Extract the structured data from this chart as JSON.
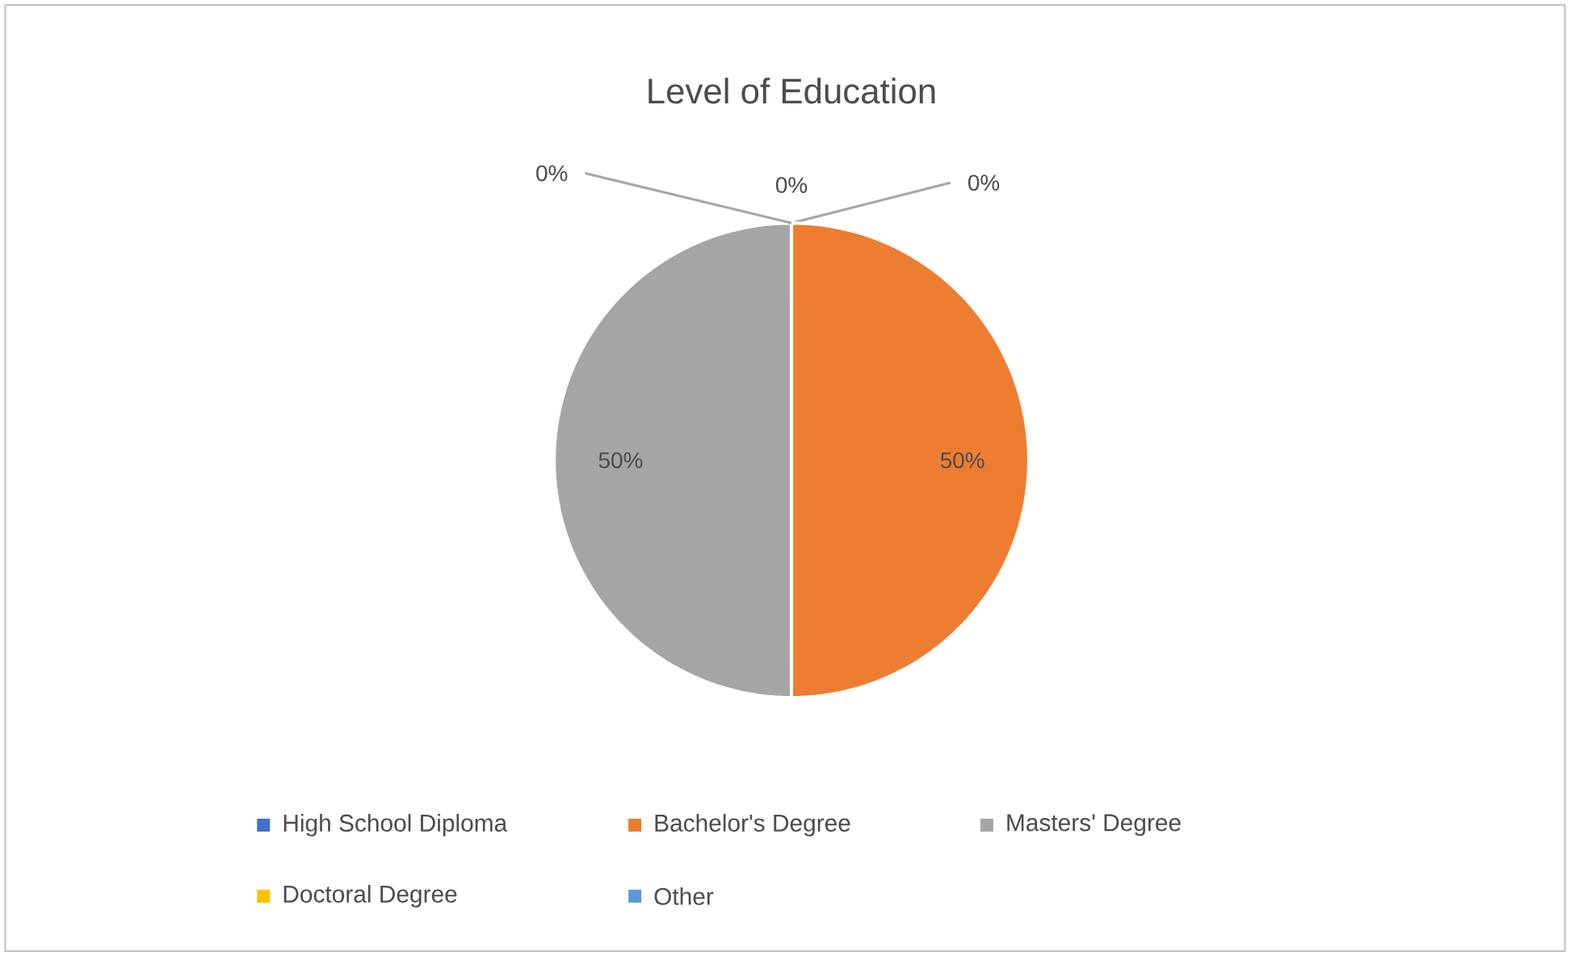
{
  "chart_data": {
    "type": "pie",
    "title": "Level of Education",
    "categories": [
      "High School Diploma",
      "Bachelor's Degree",
      "Masters' Degree",
      "Doctoral Degree",
      "Other"
    ],
    "values": [
      0,
      50,
      50,
      0,
      0
    ],
    "colors": [
      "#4472c4",
      "#ed7d31",
      "#a5a5a5",
      "#ffc000",
      "#5b9bd5"
    ],
    "value_labels": [
      "0%",
      "50%",
      "50%",
      "0%",
      "0%"
    ],
    "legend": "bottom"
  }
}
